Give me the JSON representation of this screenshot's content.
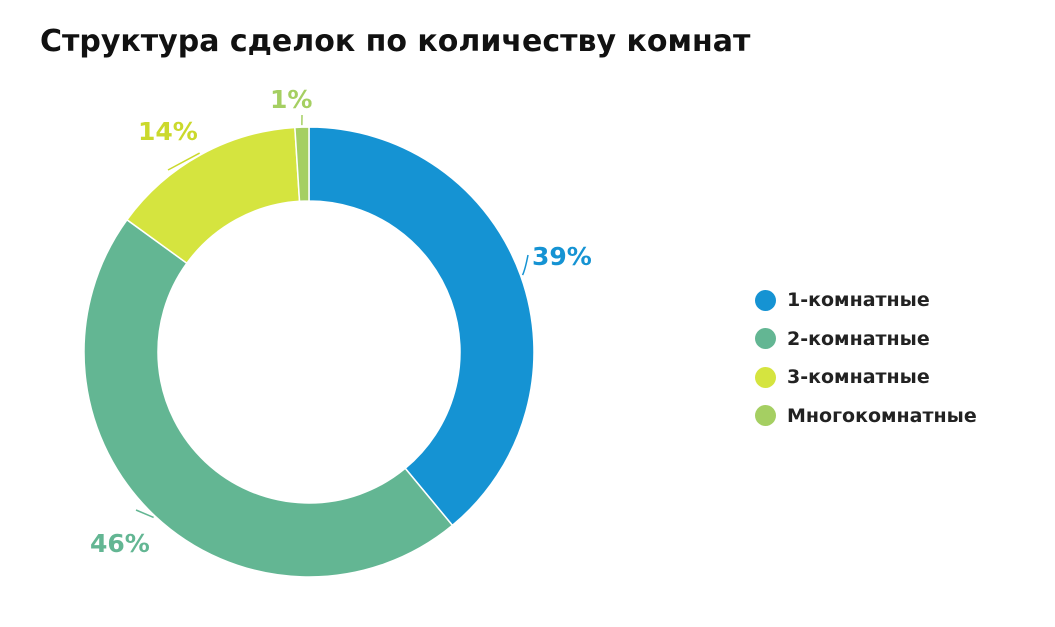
{
  "chart_data": {
    "type": "pie",
    "variant": "donut",
    "title": "Структура сделок по количеству комнат",
    "categories": [
      "1-комнатные",
      "2-комнатные",
      "3-комнатные",
      "Многокомнатные"
    ],
    "values": [
      39,
      46,
      14,
      1
    ],
    "value_labels": [
      "39%",
      "46%",
      "14%",
      "1%"
    ],
    "colors": [
      "#1593d3",
      "#63b693",
      "#d5e43f",
      "#a5cf62"
    ],
    "label_colors": [
      "#1593d3",
      "#63b693",
      "#cbd92c",
      "#a5cf62"
    ],
    "legend_position": "right"
  }
}
